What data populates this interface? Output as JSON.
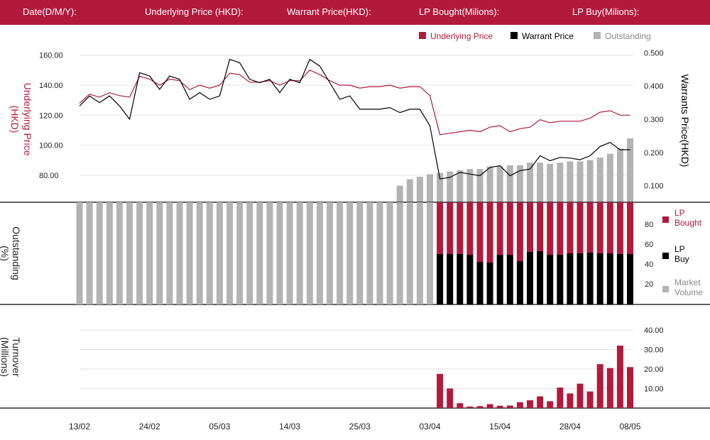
{
  "header": {
    "date_label": "Date(D/M/Y):",
    "underlying_label": "Underlying Price (HKD):",
    "warrant_label": "Warrant  Price(HKD):",
    "lp_bought_label": "LP Bought(Milions):",
    "lp_buy_label": "LP Buy(Milions):"
  },
  "colors": {
    "header_bg": "#b21a3c",
    "underlying": "#b21a3c",
    "warrant": "#000000",
    "outstanding": "#b3b3b3",
    "lp_bought": "#b21a3c",
    "lp_buy": "#000000",
    "market_volume": "#b3b3b3",
    "turnover": "#b21a3c"
  },
  "chart_data": [
    {
      "type": "line",
      "grid": true,
      "legend_position": "top-right",
      "legend": [
        "Underlying Price",
        "Warrant  Price",
        "Outstanding"
      ],
      "ylabel_left": "Underlying Price (HKD)",
      "ylabel_right": "Warrants  Price(HKD)",
      "y_left_ticks": [
        "160.00",
        "140.00",
        "120.00",
        "100.00",
        "80.00"
      ],
      "y_right_ticks": [
        "0.500",
        "0.400",
        "0.300",
        "0.200",
        "0.100"
      ],
      "ylim_left": [
        62,
        166
      ],
      "ylim_right": [
        0.05,
        0.52
      ],
      "series": [
        {
          "name": "Underlying Price",
          "axis": "left",
          "values": [
            128,
            134,
            132,
            135,
            133,
            132,
            146,
            144,
            140,
            144,
            143,
            137,
            140,
            138,
            140,
            148,
            147,
            142,
            142,
            143,
            140,
            143,
            143,
            150,
            147,
            143,
            140,
            140,
            138,
            139,
            139,
            140,
            138,
            139,
            139,
            133,
            107,
            108,
            109,
            110,
            109,
            112,
            113,
            109,
            111,
            112,
            117,
            115,
            116,
            116,
            116,
            118,
            122,
            123,
            120,
            120
          ]
        },
        {
          "name": "Warrant  Price",
          "axis": "right",
          "values": [
            0.34,
            0.37,
            0.35,
            0.37,
            0.34,
            0.3,
            0.44,
            0.43,
            0.39,
            0.43,
            0.42,
            0.36,
            0.38,
            0.36,
            0.37,
            0.48,
            0.47,
            0.42,
            0.41,
            0.42,
            0.38,
            0.42,
            0.41,
            0.48,
            0.46,
            0.41,
            0.36,
            0.37,
            0.33,
            0.33,
            0.33,
            0.335,
            0.32,
            0.33,
            0.33,
            0.28,
            0.12,
            0.125,
            0.14,
            0.135,
            0.13,
            0.155,
            0.16,
            0.13,
            0.145,
            0.15,
            0.19,
            0.175,
            0.185,
            0.183,
            0.178,
            0.19,
            0.218,
            0.23,
            0.208,
            0.208
          ]
        }
      ]
    },
    {
      "type": "bar",
      "ylabel": "Outstanding (%)",
      "y_ticks": [
        "80",
        "60",
        "40",
        "20"
      ],
      "ylim": [
        0,
        103
      ],
      "legend": [
        "LP Bought",
        "LP Buy",
        "Market Volume"
      ],
      "series": [
        {
          "name": "Outstanding",
          "values": [
            13,
            18,
            20,
            22,
            23,
            24,
            25,
            26,
            26,
            28,
            28,
            29,
            29,
            31,
            31,
            30,
            31,
            32,
            32,
            33,
            35,
            38,
            42,
            50
          ]
        }
      ]
    },
    {
      "type": "bar",
      "ylabel": "Turnover (Millions)",
      "y_ticks": [
        "40.00",
        "30.00",
        "20.00",
        "10.00"
      ],
      "ylim": [
        0,
        40
      ],
      "series": [
        {
          "name": "Turnover",
          "values": [
            17.5,
            10,
            2.5,
            0.8,
            1,
            2,
            1.2,
            1.3,
            3,
            4,
            6,
            3.5,
            10.5,
            7.5,
            12.5,
            8.5,
            22.5,
            20.5,
            32,
            21
          ]
        }
      ]
    }
  ],
  "x_ticks": [
    "13/02",
    "24/02",
    "05/03",
    "14/03",
    "25/03",
    "03/04",
    "15/04",
    "28/04",
    "08/05"
  ]
}
